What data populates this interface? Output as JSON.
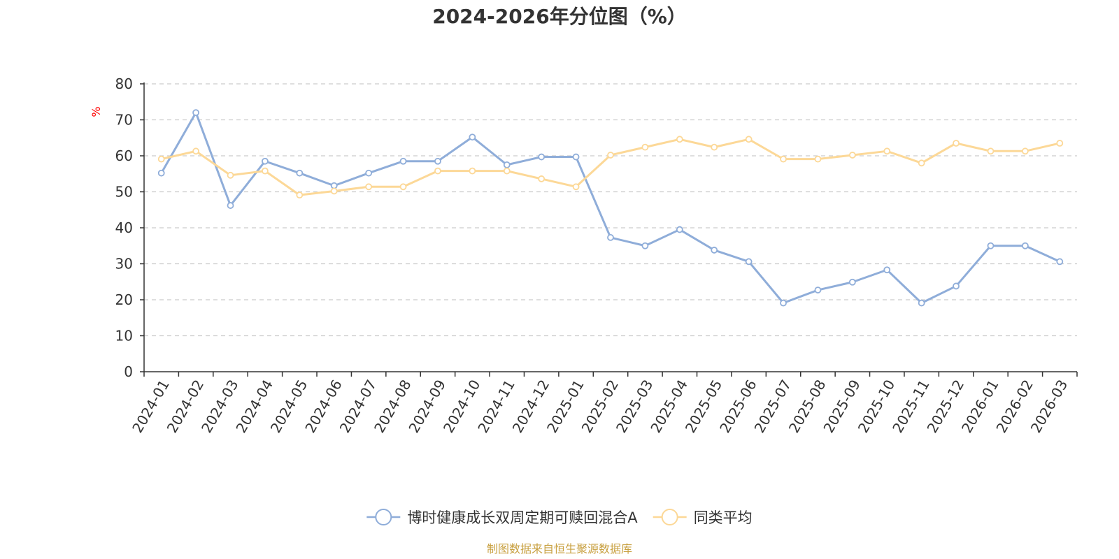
{
  "chart_data": {
    "type": "line",
    "title": "2024-2026年分位图（%）",
    "ylabel": "%",
    "ylim": [
      0,
      80
    ],
    "yticks": [
      0,
      10,
      20,
      30,
      40,
      50,
      60,
      70,
      80
    ],
    "grid": true,
    "legend_position": "bottom",
    "categories": [
      "2024-01",
      "2024-02",
      "2024-03",
      "2024-04",
      "2024-05",
      "2024-06",
      "2024-07",
      "2024-08",
      "2024-09",
      "2024-10",
      "2024-11",
      "2024-12",
      "2025-01",
      "2025-02",
      "2025-03",
      "2025-04",
      "2025-05",
      "2025-06",
      "2025-07",
      "2025-08",
      "2025-09",
      "2025-10",
      "2025-11",
      "2025-12",
      "2026-01",
      "2026-02",
      "2026-03"
    ],
    "series": [
      {
        "name": "博时健康成长双周定期可赎回混合A",
        "color": "#8fadd9",
        "values": [
          55.2,
          72.0,
          46.2,
          58.5,
          55.2,
          51.7,
          55.2,
          58.5,
          58.5,
          65.2,
          57.5,
          59.7,
          59.7,
          37.3,
          35.0,
          39.5,
          33.8,
          30.6,
          19.1,
          22.7,
          24.9,
          28.3,
          19.1,
          23.8,
          35.0,
          35.0,
          30.6
        ]
      },
      {
        "name": "同类平均",
        "color": "#fcd897",
        "values": [
          59.1,
          61.3,
          54.6,
          55.8,
          49.1,
          50.2,
          51.4,
          51.4,
          55.8,
          55.8,
          55.8,
          53.6,
          51.4,
          60.2,
          62.4,
          64.6,
          62.4,
          64.6,
          59.1,
          59.1,
          60.2,
          61.3,
          58.0,
          63.5,
          61.3,
          61.3,
          63.5
        ]
      }
    ],
    "source": "制图数据来自恒生聚源数据库"
  },
  "colors": {
    "title": "#333333",
    "axis": "#333333",
    "grid": "#cccccc",
    "unit": "#ff0000",
    "source": "#c8a040"
  }
}
